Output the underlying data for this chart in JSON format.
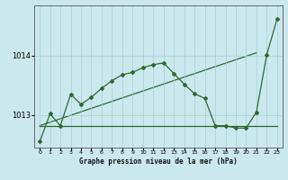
{
  "bg_color": "#cce8ef",
  "plot_bg_color": "#cce8ef",
  "grid_color": "#aacdd6",
  "line_color": "#2d6a2d",
  "xlabel": "Graphe pression niveau de la mer (hPa)",
  "xlim": [
    -0.5,
    23.5
  ],
  "ylim": [
    1012.45,
    1014.85
  ],
  "yticks": [
    1013,
    1014
  ],
  "xticks": [
    0,
    1,
    2,
    3,
    4,
    5,
    6,
    7,
    8,
    9,
    10,
    11,
    12,
    13,
    14,
    15,
    16,
    17,
    18,
    19,
    20,
    21,
    22,
    23
  ],
  "series1_x": [
    0,
    1,
    2,
    3,
    4,
    5,
    6,
    7,
    8,
    9,
    10,
    11,
    12,
    13,
    14,
    15,
    16,
    17,
    18,
    19,
    20,
    21,
    22,
    23
  ],
  "series1_y": [
    1012.55,
    1013.02,
    1012.82,
    1013.35,
    1013.18,
    1013.3,
    1013.45,
    1013.58,
    1013.68,
    1013.72,
    1013.8,
    1013.85,
    1013.88,
    1013.7,
    1013.52,
    1013.36,
    1013.28,
    1012.82,
    1012.82,
    1012.78,
    1012.78,
    1013.05,
    1014.02,
    1014.62
  ],
  "series2_x": [
    0,
    23
  ],
  "series2_y": [
    1012.82,
    1012.82
  ],
  "series3_x": [
    0,
    21
  ],
  "series3_y": [
    1012.82,
    1014.05
  ],
  "marker_size": 2.0,
  "linewidth": 0.9
}
